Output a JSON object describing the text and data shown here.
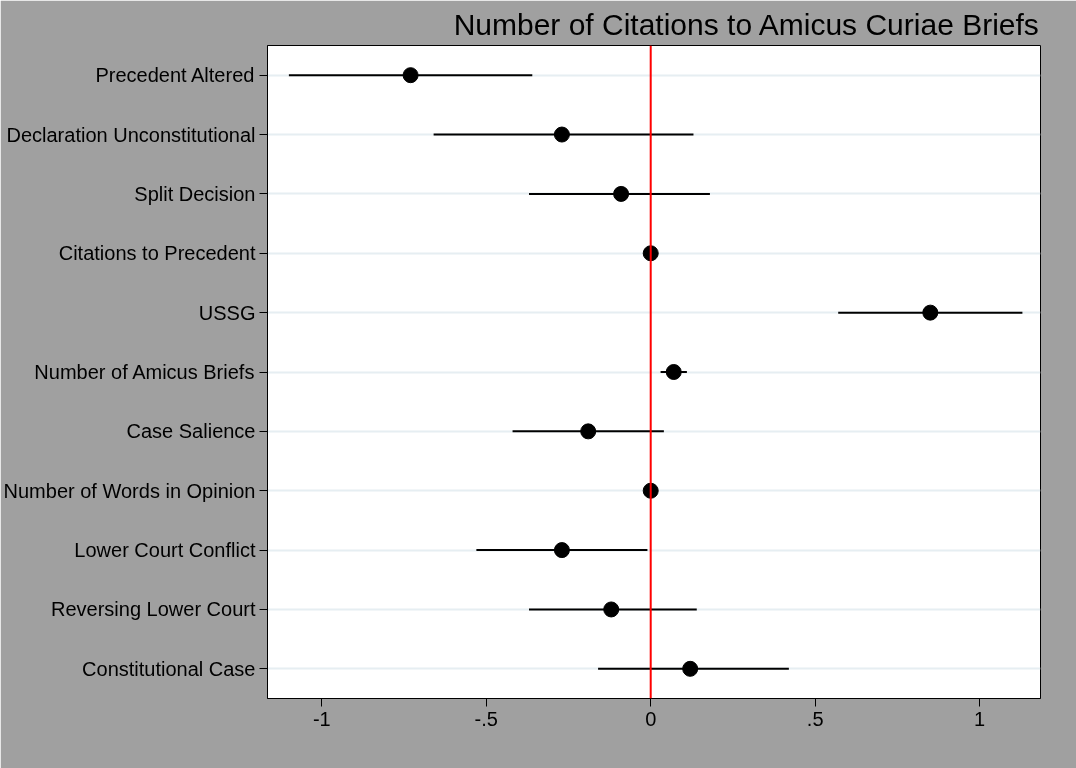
{
  "chart_data": {
    "type": "scatter",
    "orientation": "horizontal",
    "title": "Number of Citations to Amicus Curiae Briefs",
    "categories": [
      "Precedent Altered",
      "Declaration Unconstitutional",
      "Split Decision",
      "Citations to Precedent",
      "USSG",
      "Number of Amicus Briefs",
      "Case Salience",
      "Number of Words in Opinion",
      "Lower Court Conflict",
      "Reversing Lower Court",
      "Constitutional Case"
    ],
    "values": [
      -0.73,
      -0.27,
      -0.09,
      0,
      0.85,
      0.07,
      -0.19,
      0,
      -0.27,
      -0.12,
      0.12
    ],
    "errors": [
      [
        -1.1,
        -0.36
      ],
      [
        -0.66,
        0.13
      ],
      [
        -0.37,
        0.18
      ],
      null,
      [
        0.57,
        1.13
      ],
      [
        0.03,
        0.11
      ],
      [
        -0.42,
        0.04
      ],
      null,
      [
        -0.53,
        -0.01
      ],
      [
        -0.37,
        0.14
      ],
      [
        -0.16,
        0.42
      ]
    ],
    "color": "#000000",
    "marker": "circle",
    "xlim": [
      -1.165,
      1.185
    ],
    "xticks": [
      {
        "value": -1,
        "label": "-1"
      },
      {
        "value": -0.5,
        "label": "-.5"
      },
      0,
      {
        "value": 0.5,
        "label": ".5"
      },
      1
    ],
    "ref_lines": [
      {
        "axis": "x",
        "value": 0,
        "color": "#ff0000"
      }
    ],
    "grid": "y"
  }
}
